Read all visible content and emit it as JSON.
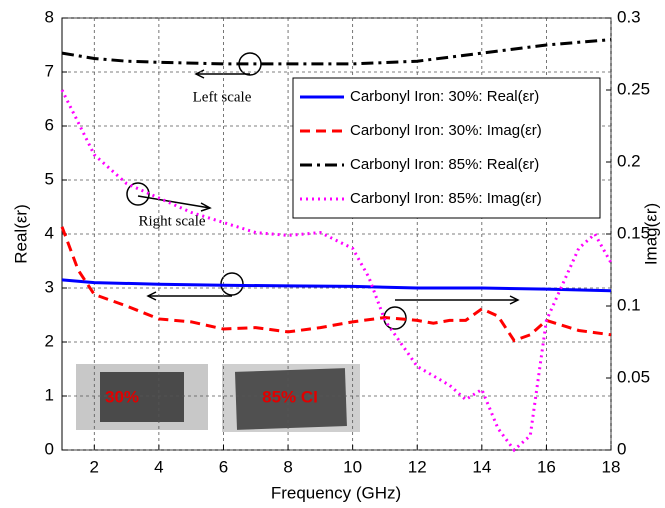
{
  "chart_data": {
    "type": "line",
    "xlabel": "Frequency (GHz)",
    "ylabel": "Real(εr)",
    "y2label": "Imag(εr)",
    "xlim": [
      1,
      18
    ],
    "xticks": [
      2,
      4,
      6,
      8,
      10,
      12,
      14,
      16,
      18
    ],
    "ylim": [
      0,
      8
    ],
    "yticks": [
      0,
      1,
      2,
      3,
      4,
      5,
      6,
      7,
      8
    ],
    "y2lim": [
      0,
      0.3
    ],
    "y2ticks": [
      0,
      0.05,
      0.1,
      0.15,
      0.2,
      0.25,
      0.3
    ],
    "grid": true,
    "legend": "upper right",
    "annotations": [
      "Left scale",
      "Right scale",
      "30%",
      "85% CI"
    ],
    "series": [
      {
        "name": "Carbonyl Iron: 30%: Real(εr)",
        "color": "#0000ff",
        "linestyle": "solid",
        "axis": "y",
        "x": [
          1,
          2,
          4,
          6,
          8,
          10,
          12,
          14,
          16,
          18
        ],
        "values": [
          3.15,
          3.1,
          3.07,
          3.05,
          3.04,
          3.03,
          3.0,
          3.0,
          2.98,
          2.95
        ]
      },
      {
        "name": "Carbonyl Iron: 30%: Imag(εr)",
        "color": "#ff0000",
        "linestyle": "dashed",
        "axis": "y2",
        "x": [
          1,
          1.5,
          2,
          3,
          4,
          5,
          6,
          7,
          8,
          9,
          10,
          11,
          12,
          12.5,
          13,
          13.5,
          14,
          14.5,
          15,
          15.5,
          16,
          17,
          18
        ],
        "values": [
          0.155,
          0.125,
          0.108,
          0.1,
          0.091,
          0.089,
          0.084,
          0.085,
          0.082,
          0.085,
          0.089,
          0.092,
          0.09,
          0.088,
          0.09,
          0.09,
          0.098,
          0.093,
          0.076,
          0.08,
          0.09,
          0.083,
          0.08
        ]
      },
      {
        "name": "Carbonyl Iron: 85%: Real(εr)",
        "color": "#000000",
        "linestyle": "dashdot",
        "axis": "y",
        "x": [
          1,
          2,
          3,
          4,
          6,
          8,
          10,
          12,
          14,
          16,
          18
        ],
        "values": [
          7.35,
          7.25,
          7.2,
          7.18,
          7.15,
          7.15,
          7.15,
          7.2,
          7.35,
          7.5,
          7.6
        ]
      },
      {
        "name": "Carbonyl Iron: 85%: Imag(εr)",
        "color": "#ff00ff",
        "linestyle": "dotted",
        "axis": "y2",
        "x": [
          1,
          2,
          3,
          4,
          5,
          6,
          7,
          8,
          9,
          10,
          10.5,
          11,
          12,
          13,
          13.5,
          14,
          14.5,
          15,
          15.5,
          16,
          17,
          17.5,
          18
        ],
        "values": [
          0.25,
          0.205,
          0.185,
          0.175,
          0.165,
          0.158,
          0.151,
          0.149,
          0.151,
          0.14,
          0.12,
          0.09,
          0.058,
          0.045,
          0.035,
          0.042,
          0.015,
          0,
          0.01,
          0.09,
          0.14,
          0.15,
          0.13
        ]
      }
    ]
  }
}
